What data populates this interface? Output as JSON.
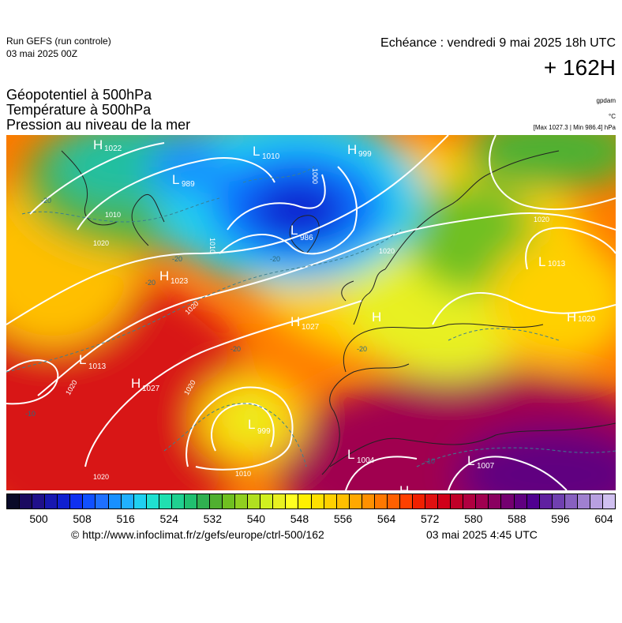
{
  "run": {
    "line1": "Run GEFS (run controle)",
    "line2": "03 mai 2025 00Z"
  },
  "echeance": "Echéance : vendredi 9 mai 2025 18h UTC",
  "lead": "+ 162H",
  "fields": [
    "Géopotentiel à 500hPa",
    "Température à 500hPa",
    "Pression au niveau de la mer"
  ],
  "units": {
    "gpdam": "gpdam",
    "degc": "°C",
    "hpa": "[Max 1027.3 | Min 986.4] hPa"
  },
  "colorbar": {
    "colors": [
      "#0a0a28",
      "#1a0a60",
      "#20108a",
      "#1818b0",
      "#1020d0",
      "#0f30f0",
      "#1050ff",
      "#1e70ff",
      "#1890ff",
      "#20b0ff",
      "#20d0f0",
      "#20e0d0",
      "#20e0b0",
      "#20d090",
      "#20c070",
      "#30b050",
      "#50b030",
      "#70c020",
      "#90d020",
      "#b0e020",
      "#d0f020",
      "#e8f020",
      "#ffff20",
      "#fff000",
      "#ffe000",
      "#ffd000",
      "#ffbf00",
      "#ffa800",
      "#ff9000",
      "#ff7800",
      "#ff6000",
      "#ff4000",
      "#f02000",
      "#e01010",
      "#d00018",
      "#c00028",
      "#b00040",
      "#a00050",
      "#8a0060",
      "#740070",
      "#600080",
      "#500090",
      "#6020a0",
      "#7040b0",
      "#8860c0",
      "#a080d0",
      "#b8a0e0",
      "#d0c0f0"
    ],
    "ticks": [
      "500",
      "508",
      "516",
      "524",
      "532",
      "540",
      "548",
      "556",
      "564",
      "572",
      "580",
      "588",
      "596",
      "604"
    ]
  },
  "map": {
    "pressure_labels": [
      {
        "t": "H",
        "v": "1022"
      },
      {
        "t": "L",
        "v": "989"
      },
      {
        "t": "L",
        "v": "1010"
      },
      {
        "t": "H",
        "v": "999"
      },
      {
        "t": "L",
        "v": "986"
      },
      {
        "t": "H",
        "v": "1023"
      },
      {
        "t": "H",
        "v": "1027"
      },
      {
        "t": "H",
        "v": ""
      },
      {
        "t": "L",
        "v": "1013"
      },
      {
        "t": "H",
        "v": "1027"
      },
      {
        "t": "L",
        "v": "999"
      },
      {
        "t": "L",
        "v": "1004"
      },
      {
        "t": "L",
        "v": "1007"
      },
      {
        "t": "H",
        "v": "1020"
      },
      {
        "t": "L",
        "v": "1013"
      },
      {
        "t": "H",
        "v": ""
      }
    ],
    "isobar_values": [
      "1020",
      "1010",
      "1000",
      "1020",
      "1020",
      "1020",
      "1010",
      "1020",
      "1010",
      "1020",
      "1020"
    ],
    "temp_values": [
      "-20",
      "-20",
      "-20",
      "-20",
      "-20",
      "-20",
      "-10",
      "-10"
    ]
  },
  "footer": {
    "credit": "© http://www.infoclimat.fr/z/gefs/europe/ctrl-500/162",
    "date": "03 mai 2025  4:45 UTC"
  }
}
